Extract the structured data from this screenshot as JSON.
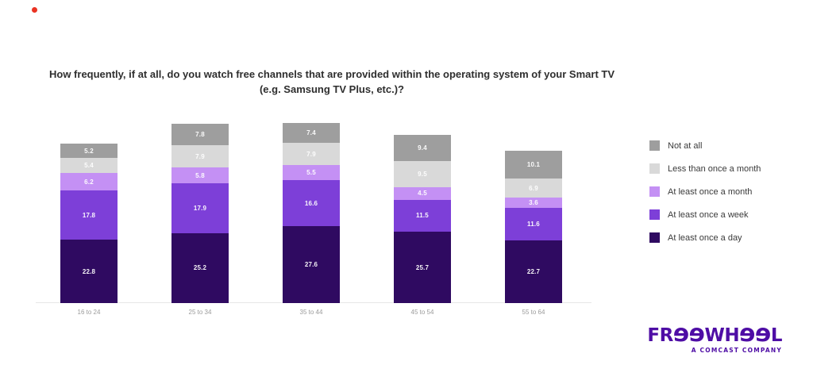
{
  "header": {
    "title_lines": [
      "How frequently, if at all, do you watch free channels that are provided within the operating system of your Smart TV",
      "(e.g. Samsung TV Plus, etc.)?"
    ]
  },
  "chart_data": {
    "type": "bar",
    "stacked": true,
    "title": "How frequently, if at all, do you watch free channels that are provided within the operating system of your Smart TV (e.g. Samsung TV Plus, etc.)?",
    "categories": [
      "16 to 24",
      "25 to 34",
      "35 to 44",
      "45 to 54",
      "55 to 64"
    ],
    "series": [
      {
        "name": "At least once a day",
        "color": "#2f0a61",
        "values": [
          22.8,
          25.2,
          27.6,
          25.7,
          22.7
        ]
      },
      {
        "name": "At least once a week",
        "color": "#7d3fd8",
        "values": [
          17.8,
          17.9,
          16.6,
          11.5,
          11.6
        ]
      },
      {
        "name": "At least once a month",
        "color": "#c490f4",
        "values": [
          6.2,
          5.8,
          5.5,
          4.5,
          3.6
        ]
      },
      {
        "name": "Less than once a month",
        "color": "#d9d9d9",
        "values": [
          5.4,
          7.9,
          7.9,
          9.5,
          6.9
        ]
      },
      {
        "name": "Not at all",
        "color": "#9e9e9e",
        "values": [
          5.2,
          7.8,
          7.4,
          9.4,
          10.1
        ]
      }
    ],
    "unit": "percent",
    "value_labels": "inside",
    "grid": false,
    "legend_position": "right",
    "legend_order_top_to_bottom": [
      "Not at all",
      "Less than once a month",
      "At least once a month",
      "At least once a week",
      "At least once a day"
    ]
  },
  "brand": {
    "wordmark_segments": [
      "FR",
      "ɘɘ",
      "WH",
      "ɘɘ",
      "L"
    ],
    "tagline": "A COMCAST COMPANY",
    "color": "#4e0da5"
  },
  "decorations": {
    "red_dot_color": "#ea3323"
  }
}
